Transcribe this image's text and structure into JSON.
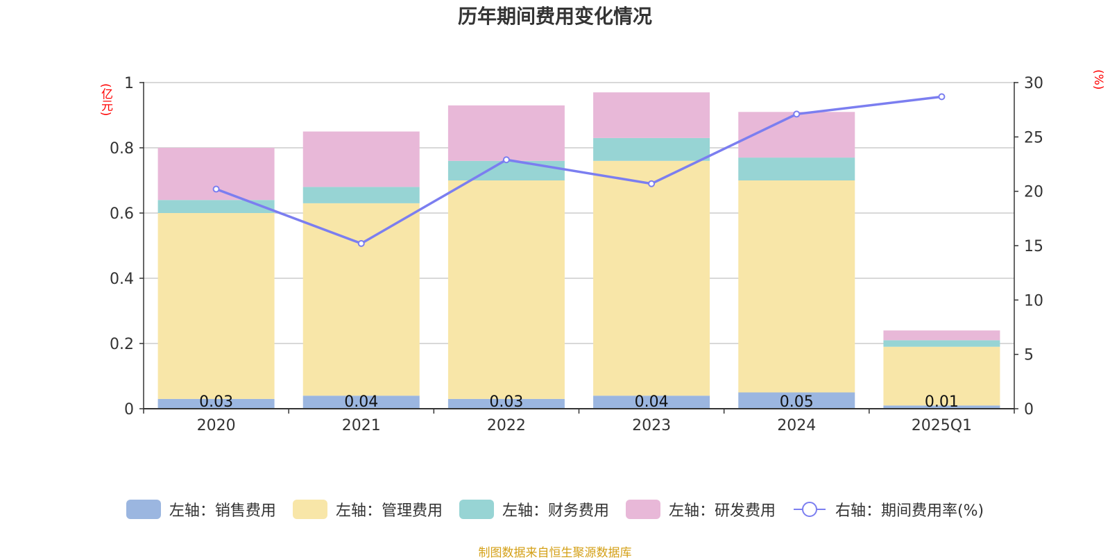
{
  "chart_data": {
    "type": "bar",
    "title": "历年期间费用变化情况",
    "left_unit": "(亿元)",
    "right_unit": "(%)",
    "categories": [
      "2020",
      "2021",
      "2022",
      "2023",
      "2024",
      "2025Q1"
    ],
    "stacked": true,
    "series": [
      {
        "name": "左轴：销售费用",
        "axis": "left",
        "type": "bar",
        "color": "#9bb6e0",
        "values": [
          0.03,
          0.04,
          0.03,
          0.04,
          0.05,
          0.01
        ],
        "labels": [
          "0.03",
          "0.04",
          "0.03",
          "0.04",
          "0.05",
          "0.01"
        ]
      },
      {
        "name": "左轴：管理费用",
        "axis": "left",
        "type": "bar",
        "color": "#f8e6a8",
        "values": [
          0.57,
          0.59,
          0.67,
          0.72,
          0.65,
          0.18
        ]
      },
      {
        "name": "左轴：财务费用",
        "axis": "left",
        "type": "bar",
        "color": "#97d4d4",
        "values": [
          0.04,
          0.05,
          0.06,
          0.07,
          0.07,
          0.02
        ]
      },
      {
        "name": "左轴：研发费用",
        "axis": "left",
        "type": "bar",
        "color": "#e8b8d8",
        "values": [
          0.16,
          0.17,
          0.17,
          0.14,
          0.14,
          0.03
        ]
      },
      {
        "name": "右轴：期间费用率(%)",
        "axis": "right",
        "type": "line",
        "color": "#7b7ef0",
        "values": [
          20.2,
          15.2,
          22.9,
          20.7,
          27.1,
          28.7
        ]
      }
    ],
    "y_left": {
      "min": 0,
      "max": 1,
      "ticks": [
        "0",
        "0.2",
        "0.4",
        "0.6",
        "0.8",
        "1"
      ]
    },
    "y_right": {
      "min": 0,
      "max": 30,
      "ticks": [
        "0",
        "5",
        "10",
        "15",
        "20",
        "25",
        "30"
      ]
    },
    "grid": true,
    "legend_position": "bottom",
    "source": "制图数据来自恒生聚源数据库"
  }
}
